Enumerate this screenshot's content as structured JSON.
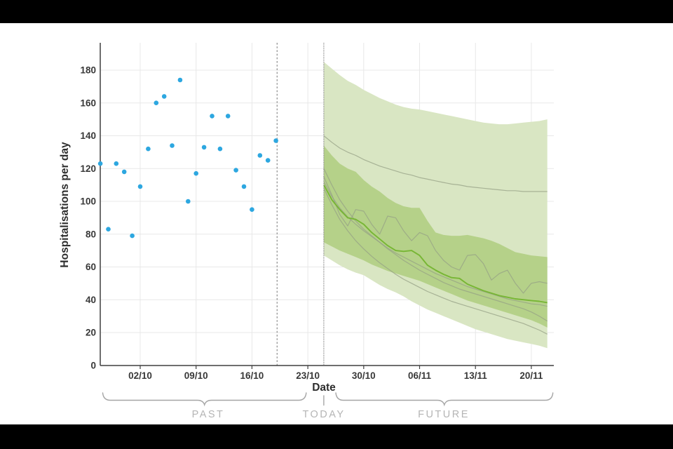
{
  "colors": {
    "background": "#ffffff",
    "letterbox": "#000000",
    "grid": "#e8e8e8",
    "axis": "#3f3f3f",
    "tick_text": "#383838",
    "title_text": "#2d2d2d",
    "muted_text": "#b5b5b5",
    "brace": "#a6a6a6",
    "marker_line": "#8c8c8c",
    "scatter": "#2da7e0",
    "band_outer": "#d9e6c3",
    "band_inner": "#b5d189",
    "median": "#74b42f",
    "trajectory": "#95a086"
  },
  "chart_data": {
    "type": "scatter+forecast-fan",
    "title": "",
    "ylabel": "Hospitalisations per day",
    "xlabel": "Date",
    "ylim": [
      0,
      196
    ],
    "grid": true,
    "y_ticks": [
      0,
      20,
      40,
      60,
      80,
      100,
      120,
      140,
      160,
      180
    ],
    "x_ticks": [
      {
        "label": "02/10",
        "day": 5
      },
      {
        "label": "09/10",
        "day": 12
      },
      {
        "label": "16/10",
        "day": 19
      },
      {
        "label": "23/10",
        "day": 26
      },
      {
        "label": "30/10",
        "day": 33
      },
      {
        "label": "06/11",
        "day": 40
      },
      {
        "label": "13/11",
        "day": 47
      },
      {
        "label": "20/11",
        "day": 54
      }
    ],
    "observed": {
      "name": "Observed hospitalisations per day",
      "dates": [
        "27/09",
        "28/09",
        "29/09",
        "30/09",
        "01/10",
        "02/10",
        "03/10",
        "04/10",
        "05/10",
        "06/10",
        "07/10",
        "08/10",
        "09/10",
        "10/10",
        "11/10",
        "12/10",
        "13/10",
        "14/10",
        "15/10",
        "16/10",
        "17/10",
        "18/10",
        "19/10"
      ],
      "values": [
        123,
        83,
        123,
        118,
        79,
        109,
        132,
        160,
        164,
        134,
        174,
        100,
        117,
        133,
        152,
        132,
        152,
        119,
        109,
        95,
        128,
        125,
        137
      ]
    },
    "markers": {
      "dashed_line_day": 22.15,
      "today_line_day": 28
    },
    "forecast": {
      "start_day": 28,
      "end_day": 56,
      "bands": [
        {
          "name": "outer",
          "top": [
            185,
            181,
            177,
            173.5,
            171,
            168,
            165.5,
            163,
            161,
            159,
            157.5,
            156.5,
            156,
            155,
            154,
            153,
            152,
            151,
            150,
            149,
            148,
            147.5,
            147,
            147,
            147.5,
            148,
            148.5,
            149,
            150
          ],
          "bottom": [
            67,
            64,
            61,
            58.5,
            56.5,
            55,
            52,
            49,
            46.5,
            44.5,
            42,
            39,
            36.5,
            34,
            32,
            30,
            28,
            26,
            24,
            22,
            20.5,
            19,
            17.5,
            16,
            15,
            14,
            13,
            12,
            10.5
          ]
        },
        {
          "name": "inner",
          "top": [
            134,
            128,
            123,
            120,
            118,
            113,
            109,
            106,
            102,
            99,
            97,
            96,
            96,
            88,
            81,
            79.5,
            79,
            79,
            79.5,
            78.5,
            77.5,
            76,
            74,
            71.5,
            69,
            68,
            67,
            66.5,
            66
          ],
          "bottom": [
            75,
            72.5,
            70,
            68,
            66,
            64,
            61.5,
            59.5,
            57.5,
            56,
            54.5,
            53,
            51.5,
            49.5,
            47.5,
            45.5,
            43.5,
            41.5,
            39.5,
            38,
            36.5,
            35,
            33.5,
            32,
            30.5,
            29,
            27.5,
            25.5,
            23
          ]
        }
      ],
      "trajectories": [
        [
          140,
          136,
          132.5,
          130,
          128,
          125.5,
          123.5,
          121.5,
          120,
          118.5,
          117,
          116,
          114.5,
          113.5,
          112.5,
          111.5,
          110.5,
          110,
          109,
          108.5,
          108,
          107.5,
          107,
          106.5,
          106.5,
          106,
          106,
          106,
          106
        ],
        [
          115,
          104,
          92,
          85,
          95,
          94,
          86,
          80,
          91,
          90,
          82,
          76,
          81,
          79,
          70,
          64,
          60,
          58,
          67,
          67.5,
          62,
          52,
          56,
          58,
          50,
          44,
          50,
          51,
          50
        ],
        [
          120,
          110,
          101,
          94,
          88,
          83,
          79,
          75,
          71,
          67.5,
          64,
          61,
          58,
          55.5,
          53,
          50.5,
          48.5,
          46.5,
          45,
          43.5,
          42,
          40.5,
          39,
          37.5,
          36,
          34.5,
          32.5,
          30,
          27
        ],
        [
          108,
          98,
          89,
          82,
          76,
          71,
          66.5,
          62.5,
          59,
          55.5,
          52.5,
          50,
          47.5,
          45,
          43,
          41,
          39,
          37.5,
          36,
          34.5,
          33,
          31.5,
          30,
          28.5,
          27,
          25.5,
          23.5,
          21.5,
          19
        ],
        [
          112,
          103,
          96,
          90.5,
          86,
          82,
          78.5,
          75,
          71.5,
          68.5,
          66,
          63.5,
          61,
          58.5,
          56,
          54,
          52,
          50,
          48,
          46.5,
          45,
          43.5,
          42,
          40.5,
          39.5,
          38.5,
          37.5,
          37,
          36
        ]
      ],
      "median": [
        110,
        101,
        95,
        90,
        89,
        86,
        81,
        77,
        73,
        70,
        69.5,
        70,
        67,
        61,
        58,
        55.5,
        53.5,
        53,
        49.5,
        47.5,
        45.5,
        44,
        42.5,
        41.5,
        40.5,
        40,
        39.5,
        39,
        38.2
      ]
    },
    "timeline": {
      "past_label": "PAST",
      "today_label": "TODAY",
      "future_label": "FUTURE",
      "past_span": [
        0.3,
        25.8
      ],
      "today_day": 28,
      "future_span": [
        29.5,
        56.7
      ]
    }
  }
}
